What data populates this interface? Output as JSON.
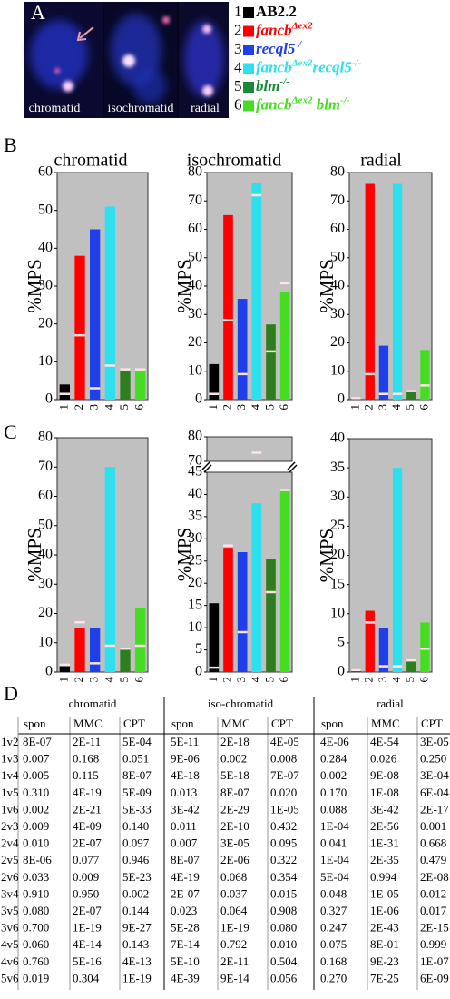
{
  "panel_labels": [
    "A",
    "B",
    "C",
    "D"
  ],
  "image_panel": {
    "labels": [
      "chromatid",
      "isochromatid",
      "radial"
    ]
  },
  "legend": [
    {
      "number": "1",
      "color": "#000000",
      "parts": [
        {
          "text": "AB2.2"
        }
      ]
    },
    {
      "number": "2",
      "color": "#ff0000",
      "parts": [
        {
          "text": "fancb",
          "italic": true
        },
        {
          "text": "Δex2",
          "italic": true,
          "sup": true
        }
      ]
    },
    {
      "number": "3",
      "color": "#1f3fe8",
      "parts": [
        {
          "text": "recql5",
          "italic": true
        },
        {
          "text": "-/-",
          "italic": true,
          "sup": true
        }
      ]
    },
    {
      "number": "4",
      "color": "#2ee0ee",
      "parts": [
        {
          "text": "fancb",
          "italic": true
        },
        {
          "text": "Δex2",
          "italic": true,
          "sup": true
        },
        {
          "text": "recql5",
          "italic": true
        },
        {
          "text": "-/-",
          "italic": true,
          "sup": true
        }
      ]
    },
    {
      "number": "5",
      "color": "#1a8a3a",
      "parts": [
        {
          "text": "blm",
          "italic": true
        },
        {
          "text": "-/-",
          "italic": true,
          "sup": true
        }
      ]
    },
    {
      "number": "6",
      "color": "#44dd22",
      "parts": [
        {
          "text": "fancb",
          "italic": true
        },
        {
          "text": "Δex2",
          "italic": true,
          "sup": true
        },
        {
          "text": " blm",
          "italic": true
        },
        {
          "text": "-/-",
          "italic": true,
          "sup": true
        }
      ]
    }
  ],
  "chart_data": [
    {
      "type": "bar",
      "title": "chromatid",
      "ylabel": "%MPS",
      "categories": [
        "1",
        "2",
        "3",
        "4",
        "5",
        "6"
      ],
      "values": [
        4,
        38,
        45,
        51,
        8,
        8
      ],
      "inner_values": [
        1.5,
        17,
        3,
        9,
        8,
        8
      ],
      "colors": [
        "#000000",
        "#ff0000",
        "#1f3fe8",
        "#2ee0ee",
        "#2e7d1e",
        "#44dd22"
      ],
      "marker_color": "#ffe4e4",
      "ylim": [
        0,
        60
      ],
      "yticks": [
        0,
        10,
        20,
        30,
        40,
        50,
        60
      ]
    },
    {
      "type": "bar",
      "title": "isochromatid",
      "ylabel": "%MPS",
      "categories": [
        "1",
        "2",
        "3",
        "4",
        "5",
        "6"
      ],
      "values": [
        12.5,
        65,
        35.5,
        76.5,
        26.5,
        38
      ],
      "inner_values": [
        2,
        28,
        9,
        72,
        17,
        41
      ],
      "colors": [
        "#000000",
        "#ff0000",
        "#1f3fe8",
        "#2ee0ee",
        "#2e7d1e",
        "#44dd22"
      ],
      "marker_color": "#ffe4e4",
      "ylim": [
        0,
        80
      ],
      "yticks": [
        0,
        10,
        20,
        30,
        40,
        50,
        60,
        70,
        80
      ]
    },
    {
      "type": "bar",
      "title": "radial",
      "ylabel": "%MPS",
      "categories": [
        "1",
        "2",
        "3",
        "4",
        "5",
        "6"
      ],
      "values": [
        0.5,
        76,
        19,
        76,
        3,
        17.5
      ],
      "inner_values": [
        0.5,
        9,
        2,
        2,
        3,
        5
      ],
      "colors": [
        "#000000",
        "#ff0000",
        "#1f3fe8",
        "#2ee0ee",
        "#2e7d1e",
        "#44dd22"
      ],
      "marker_color": "#ffe4e4",
      "ylim": [
        0,
        80
      ],
      "yticks": [
        0,
        10,
        20,
        30,
        40,
        50,
        60,
        70,
        80
      ]
    },
    {
      "type": "bar",
      "ylabel": "%MPS",
      "categories": [
        "1",
        "2",
        "3",
        "4",
        "5",
        "6"
      ],
      "values": [
        2,
        15,
        15,
        70,
        8,
        22
      ],
      "inner_values": [
        2.5,
        17,
        3,
        9,
        8,
        9
      ],
      "colors": [
        "#000000",
        "#ff0000",
        "#1f3fe8",
        "#2ee0ee",
        "#2e7d1e",
        "#44dd22"
      ],
      "marker_color": "#ffe4e4",
      "ylim": [
        0,
        80
      ],
      "yticks": [
        0,
        10,
        20,
        30,
        40,
        50,
        60,
        70,
        80
      ]
    },
    {
      "type": "bar",
      "ylabel": "%MPS",
      "categories": [
        "1",
        "2",
        "3",
        "4",
        "5",
        "6"
      ],
      "values": [
        15.5,
        28,
        27,
        38,
        25.5,
        41
      ],
      "inner_values": [
        1,
        28.5,
        9,
        73.5,
        18,
        41
      ],
      "colors": [
        "#000000",
        "#ff0000",
        "#1f3fe8",
        "#2ee0ee",
        "#2e7d1e",
        "#44dd22"
      ],
      "marker_color": "#ffe4e4",
      "ylim": [
        0,
        45
      ],
      "yticks": [
        0,
        5,
        10,
        15,
        20,
        25,
        30,
        35,
        40,
        45
      ],
      "ylim_upper": [
        70,
        80
      ],
      "yticks_upper": [
        70,
        80
      ]
    },
    {
      "type": "bar",
      "ylabel": "%MPS",
      "categories": [
        "1",
        "2",
        "3",
        "4",
        "5",
        "6"
      ],
      "values": [
        0.3,
        10.5,
        7.5,
        35,
        2,
        8.5
      ],
      "inner_values": [
        0.3,
        8.5,
        1,
        1,
        2,
        4
      ],
      "colors": [
        "#000000",
        "#ff0000",
        "#1f3fe8",
        "#2ee0ee",
        "#2e7d1e",
        "#44dd22"
      ],
      "marker_color": "#ffe4e4",
      "ylim": [
        0,
        40
      ],
      "yticks": [
        0,
        5,
        10,
        15,
        20,
        25,
        30,
        35,
        40
      ]
    }
  ],
  "table": {
    "groups": [
      "chromatid",
      "iso-chromatid",
      "radial"
    ],
    "columns": [
      "spon",
      "MMC",
      "CPT"
    ],
    "rows": [
      {
        "label": "1v2",
        "values": [
          "8E-07",
          "2E-11",
          "5E-04",
          "5E-11",
          "2E-18",
          "4E-05",
          "4E-06",
          "4E-54",
          "3E-05"
        ]
      },
      {
        "label": "1v3",
        "values": [
          "0.007",
          "0.168",
          "0.051",
          "9E-06",
          "0.002",
          "0.008",
          "0.284",
          "0.026",
          "0.250"
        ]
      },
      {
        "label": "1v4",
        "values": [
          "0.005",
          "0.115",
          "8E-07",
          "4E-18",
          "5E-18",
          "7E-07",
          "0.002",
          "9E-08",
          "3E-04"
        ]
      },
      {
        "label": "1v5",
        "values": [
          "0.310",
          "4E-19",
          "5E-09",
          "0.013",
          "8E-07",
          "0.020",
          "0.170",
          "1E-08",
          "6E-04"
        ]
      },
      {
        "label": "1v6",
        "values": [
          "0.002",
          "2E-21",
          "5E-33",
          "3E-42",
          "2E-29",
          "1E-05",
          "0.088",
          "3E-42",
          "2E-17"
        ]
      },
      {
        "label": "2v3",
        "values": [
          "0.009",
          "4E-09",
          "0.140",
          "0.011",
          "2E-10",
          "0.432",
          "1E-04",
          "2E-56",
          "0.001"
        ]
      },
      {
        "label": "2v4",
        "values": [
          "0.010",
          "2E-07",
          "0.097",
          "0.007",
          "3E-05",
          "0.095",
          "0.041",
          "1E-31",
          "0.668"
        ]
      },
      {
        "label": "2v5",
        "values": [
          "8E-06",
          "0.077",
          "0.946",
          "8E-07",
          "2E-06",
          "0.322",
          "1E-04",
          "2E-35",
          "0.479"
        ]
      },
      {
        "label": "2v6",
        "values": [
          "0.033",
          "0.009",
          "5E-23",
          "4E-19",
          "0.068",
          "0.354",
          "5E-04",
          "0.994",
          "2E-08"
        ]
      },
      {
        "label": "3v4",
        "values": [
          "0.910",
          "0.950",
          "0.002",
          "2E-07",
          "0.037",
          "0.015",
          "0.048",
          "1E-05",
          "0.012"
        ]
      },
      {
        "label": "3v5",
        "values": [
          "0.080",
          "2E-07",
          "0.144",
          "0.023",
          "0.064",
          "0.908",
          "0.327",
          "1E-06",
          "0.017"
        ]
      },
      {
        "label": "3v6",
        "values": [
          "0.700",
          "1E-19",
          "9E-27",
          "5E-28",
          "1E-19",
          "0.080",
          "0.247",
          "2E-43",
          "2E-15"
        ]
      },
      {
        "label": "4v5",
        "values": [
          "0.060",
          "4E-14",
          "0.143",
          "7E-14",
          "0.792",
          "0.010",
          "0.075",
          "8E-01",
          "0.999"
        ]
      },
      {
        "label": "4v6",
        "values": [
          "0.760",
          "5E-16",
          "4E-13",
          "5E-10",
          "2E-11",
          "0.504",
          "0.168",
          "9E-23",
          "1E-07"
        ]
      },
      {
        "label": "5v6",
        "values": [
          "0.019",
          "0.304",
          "1E-19",
          "4E-39",
          "9E-14",
          "0.056",
          "0.270",
          "7E-25",
          "6E-09"
        ]
      }
    ]
  }
}
